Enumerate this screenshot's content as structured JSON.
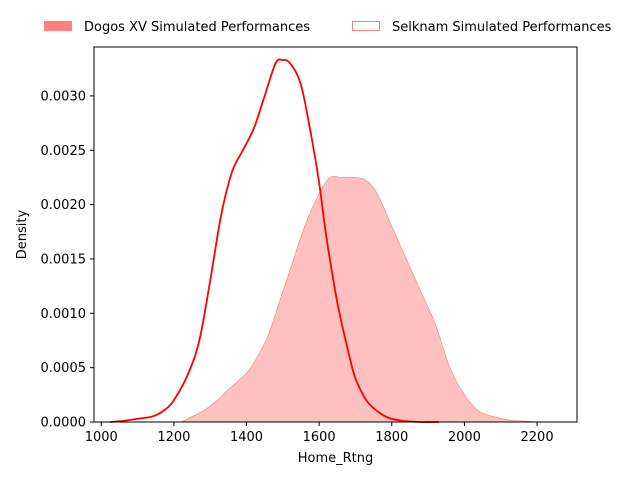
{
  "chart_data": {
    "type": "area",
    "xlabel": "Home_Rtng",
    "ylabel": "Density",
    "xlim": [
      980,
      2310
    ],
    "ylim": [
      0,
      0.00345
    ],
    "x_ticks": [
      1000,
      1200,
      1400,
      1600,
      1800,
      2000,
      2200
    ],
    "y_ticks": [
      0.0,
      0.0005,
      0.001,
      0.0015,
      0.002,
      0.0025,
      0.003
    ],
    "x_tick_labels": [
      "1000",
      "1200",
      "1400",
      "1600",
      "1800",
      "2000",
      "2200"
    ],
    "y_tick_labels": [
      "0.0000",
      "0.0005",
      "0.0010",
      "0.0015",
      "0.0020",
      "0.0025",
      "0.0030"
    ],
    "grid": false,
    "legend_position": "top",
    "series": [
      {
        "name": "Dogos XV Simulated Performances",
        "style": "line",
        "color": "#ff0000",
        "legend_swatch": "filled",
        "points": [
          [
            1025,
            0.0
          ],
          [
            1060,
            1e-05
          ],
          [
            1100,
            3e-05
          ],
          [
            1140,
            5e-05
          ],
          [
            1170,
            0.0001
          ],
          [
            1200,
            0.0002
          ],
          [
            1240,
            0.00045
          ],
          [
            1270,
            0.00075
          ],
          [
            1300,
            0.0013
          ],
          [
            1330,
            0.0019
          ],
          [
            1360,
            0.0023
          ],
          [
            1390,
            0.0025
          ],
          [
            1420,
            0.0027
          ],
          [
            1450,
            0.003
          ],
          [
            1480,
            0.0033
          ],
          [
            1500,
            0.00333
          ],
          [
            1520,
            0.0033
          ],
          [
            1550,
            0.0031
          ],
          [
            1580,
            0.0026
          ],
          [
            1600,
            0.0022
          ],
          [
            1620,
            0.0017
          ],
          [
            1650,
            0.0011
          ],
          [
            1680,
            0.00065
          ],
          [
            1700,
            0.0004
          ],
          [
            1730,
            0.0002
          ],
          [
            1760,
            0.0001
          ],
          [
            1790,
            4e-05
          ],
          [
            1830,
            1e-05
          ],
          [
            1880,
            0.0
          ],
          [
            1930,
            0.0
          ]
        ]
      },
      {
        "name": "Selknam Simulated Performances",
        "style": "filled",
        "color": "#ffc0c0",
        "edge_color": "#f08080",
        "legend_swatch": "outline",
        "points": [
          [
            1220,
            0.0
          ],
          [
            1250,
            5e-05
          ],
          [
            1280,
            0.0001
          ],
          [
            1320,
            0.0002
          ],
          [
            1350,
            0.0003
          ],
          [
            1400,
            0.00045
          ],
          [
            1430,
            0.0006
          ],
          [
            1460,
            0.0008
          ],
          [
            1490,
            0.0011
          ],
          [
            1520,
            0.0014
          ],
          [
            1560,
            0.0018
          ],
          [
            1600,
            0.0021
          ],
          [
            1630,
            0.00225
          ],
          [
            1660,
            0.00225
          ],
          [
            1700,
            0.00225
          ],
          [
            1730,
            0.00222
          ],
          [
            1760,
            0.0021
          ],
          [
            1800,
            0.0018
          ],
          [
            1840,
            0.0015
          ],
          [
            1880,
            0.0012
          ],
          [
            1920,
            0.0009
          ],
          [
            1960,
            0.0005
          ],
          [
            2000,
            0.00025
          ],
          [
            2040,
            0.0001
          ],
          [
            2080,
            5e-05
          ],
          [
            2120,
            2e-05
          ],
          [
            2160,
            1e-05
          ],
          [
            2200,
            0.0
          ]
        ]
      }
    ]
  }
}
